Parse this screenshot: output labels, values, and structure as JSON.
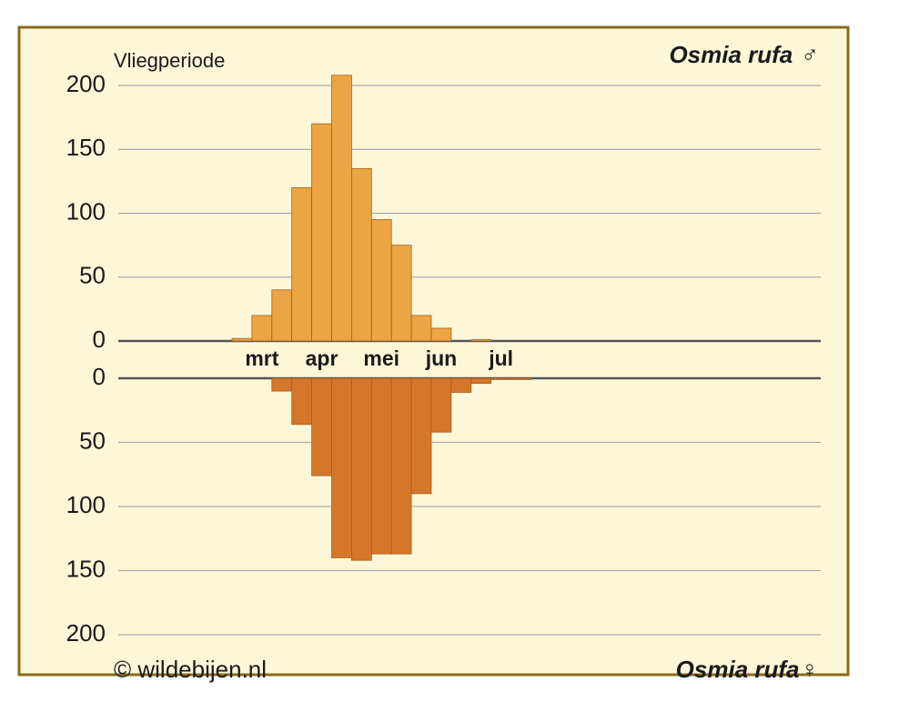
{
  "credit": "© wildebijen.nl",
  "chart_data": [
    {
      "type": "bar",
      "title": "Osmia rufa ♂",
      "y_label": "Vliegperiode",
      "categories": [
        null,
        "mrt",
        null,
        null,
        "apr",
        null,
        null,
        "mei",
        null,
        null,
        "jun",
        null,
        null,
        "jul",
        null
      ],
      "values": [
        2,
        20,
        40,
        120,
        170,
        208,
        135,
        95,
        75,
        20,
        10,
        0,
        1,
        0,
        0
      ],
      "color": "#eba544",
      "ylim": [
        0,
        200
      ],
      "yticks": [
        0,
        50,
        100,
        150,
        200
      ],
      "grid": true
    },
    {
      "type": "bar",
      "title": "Osmia rufa♀",
      "values": [
        0,
        0,
        10,
        36,
        76,
        140,
        142,
        137,
        137,
        90,
        42,
        11,
        4,
        1,
        1
      ],
      "color": "#d5772b",
      "ylim": [
        0,
        200
      ],
      "yticks": [
        0,
        50,
        100,
        150,
        200
      ],
      "grid": true,
      "y_inverted": true
    }
  ]
}
